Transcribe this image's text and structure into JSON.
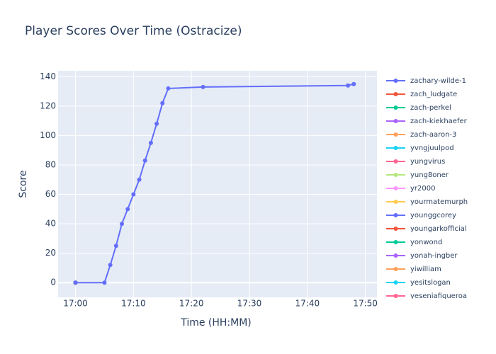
{
  "chart_data": {
    "type": "line",
    "title": "Player Scores Over Time (Ostracize)",
    "x_label": "Time (HH:MM)",
    "y_label": "Score",
    "xlim": [
      "16:57",
      "17:52"
    ],
    "xticks": [
      "17:00",
      "17:10",
      "17:20",
      "17:30",
      "17:40",
      "17:50"
    ],
    "ylim": [
      -10,
      144
    ],
    "yticks": [
      0,
      20,
      40,
      60,
      80,
      100,
      120,
      140
    ],
    "grid": true,
    "legend": "right",
    "series": [
      {
        "name": "zachary-wilde-1",
        "color": "#636efa",
        "x": [
          "17:00",
          "17:05",
          "17:06",
          "17:07",
          "17:08",
          "17:09",
          "17:10",
          "17:11",
          "17:12",
          "17:13",
          "17:14",
          "17:15",
          "17:16",
          "17:22",
          "17:47",
          "17:48"
        ],
        "values": [
          0,
          0,
          12,
          25,
          40,
          50,
          60,
          70,
          83,
          95,
          108,
          122,
          132,
          133,
          134,
          135
        ]
      },
      {
        "name": "zach_ludgate",
        "color": "#EF553B",
        "x": [
          "17:00"
        ],
        "values": [
          0
        ]
      },
      {
        "name": "zach-perkel",
        "color": "#00cc96",
        "x": [
          "17:00"
        ],
        "values": [
          0
        ]
      },
      {
        "name": "zach-kiekhaefer",
        "color": "#ab63fa",
        "x": [
          "17:00"
        ],
        "values": [
          0
        ]
      },
      {
        "name": "zach-aaron-3",
        "color": "#FFA15A",
        "x": [
          "17:00"
        ],
        "values": [
          0
        ]
      },
      {
        "name": "yvngjuulpod",
        "color": "#19d3f3",
        "x": [
          "17:00"
        ],
        "values": [
          0
        ]
      },
      {
        "name": "yungvirus",
        "color": "#FF6692",
        "x": [
          "17:00"
        ],
        "values": [
          0
        ]
      },
      {
        "name": "yung8oner",
        "color": "#B6E880",
        "x": [
          "17:00"
        ],
        "values": [
          0
        ]
      },
      {
        "name": "yr2000",
        "color": "#FF97FF",
        "x": [
          "17:00"
        ],
        "values": [
          0
        ]
      },
      {
        "name": "yourmatemurph",
        "color": "#FECB52",
        "x": [
          "17:00"
        ],
        "values": [
          0
        ]
      },
      {
        "name": "younggcorey",
        "color": "#636efa",
        "x": [
          "17:00"
        ],
        "values": [
          0
        ]
      },
      {
        "name": "youngarkofficial",
        "color": "#EF553B",
        "x": [
          "17:00"
        ],
        "values": [
          0
        ]
      },
      {
        "name": "yonwond",
        "color": "#00cc96",
        "x": [
          "17:00"
        ],
        "values": [
          0
        ]
      },
      {
        "name": "yonah-ingber",
        "color": "#ab63fa",
        "x": [
          "17:00"
        ],
        "values": [
          0
        ]
      },
      {
        "name": "yiwilliam",
        "color": "#FFA15A",
        "x": [
          "17:00"
        ],
        "values": [
          0
        ]
      },
      {
        "name": "yesitslogan",
        "color": "#19d3f3",
        "x": [
          "17:00"
        ],
        "values": [
          0
        ]
      },
      {
        "name": "yeseniafigueroa",
        "color": "#FF6692",
        "x": [
          "17:00"
        ],
        "values": [
          0
        ]
      }
    ]
  }
}
